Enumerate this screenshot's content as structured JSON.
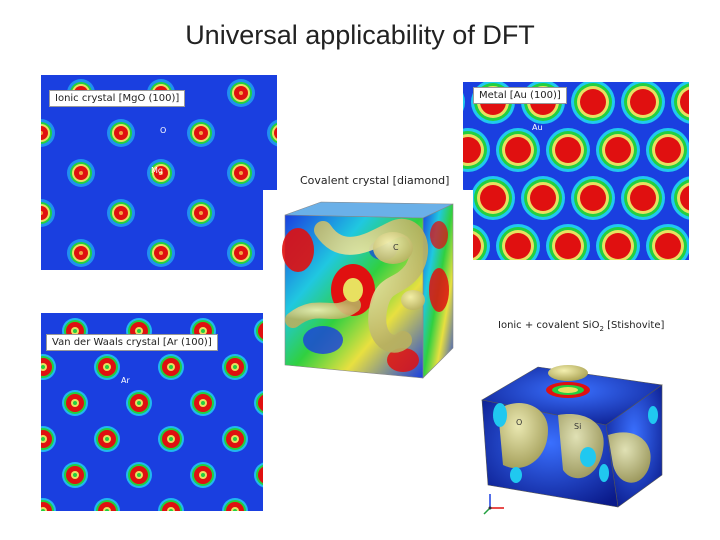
{
  "slide": {
    "title": "Universal applicability of DFT"
  },
  "panels": {
    "ionic": {
      "label": "Ionic crystal [MgO (100)]",
      "atom_o": "O",
      "atom_mg": "Mg"
    },
    "metal": {
      "label": "Metal [Au (100)]",
      "atom": "Au"
    },
    "covalent": {
      "label": "Covalent crystal [diamond]",
      "atom": "C"
    },
    "vdw": {
      "label": "Van der Waals crystal [Ar (100)]",
      "atom": "Ar"
    },
    "ionic_covalent": {
      "label_prefix": "Ionic + covalent SiO",
      "label_sub": "2",
      "label_suffix": " [Stishovite]",
      "atom_o": "O",
      "atom_si": "Si"
    }
  },
  "colors": {
    "field_blue": "#1a3fe0",
    "red": "#e01010",
    "green": "#22d040",
    "yellow": "#e8e060",
    "isosurface": "#dcd68a"
  }
}
